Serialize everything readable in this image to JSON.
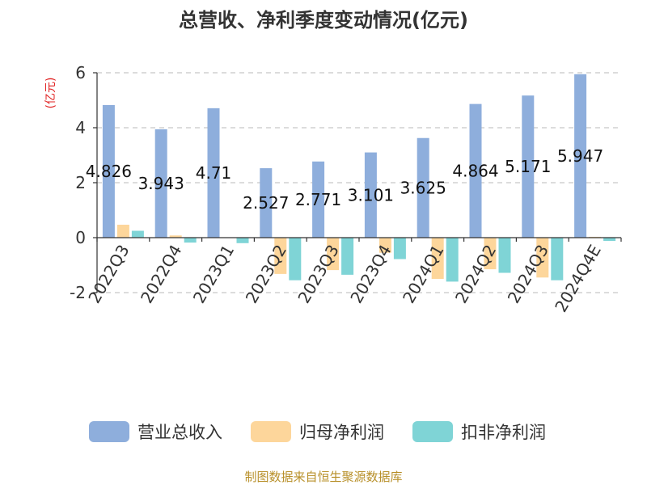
{
  "chart_data": {
    "type": "bar",
    "title": "总营收、净利季度变动情况(亿元)",
    "unit_label": "(亿元)",
    "categories": [
      "2022Q3",
      "2022Q4",
      "2023Q1",
      "2023Q2",
      "2023Q3",
      "2023Q4",
      "2024Q1",
      "2024Q2",
      "2024Q3",
      "2024Q4E"
    ],
    "series": [
      {
        "name": "营业总收入",
        "color": "#8eaedc",
        "values": [
          4.826,
          3.943,
          4.71,
          2.527,
          2.771,
          3.101,
          3.625,
          4.864,
          5.171,
          5.947
        ]
      },
      {
        "name": "归母净利润",
        "color": "#fdd69b",
        "values": [
          0.47,
          0.08,
          0.0,
          -1.32,
          -1.18,
          -0.55,
          -1.5,
          -1.15,
          -1.45,
          0.03
        ]
      },
      {
        "name": "扣非净利润",
        "color": "#7fd4d6",
        "values": [
          0.25,
          -0.18,
          -0.2,
          -1.55,
          -1.35,
          -0.78,
          -1.6,
          -1.28,
          -1.55,
          -0.12
        ]
      }
    ],
    "data_labels": [
      "4.826",
      "3.943",
      "4.71",
      "2.527",
      "2.771",
      "3.101",
      "3.625",
      "4.864",
      "5.171",
      "5.947"
    ],
    "yticks": [
      "-2",
      "0",
      "2",
      "4",
      "6"
    ],
    "ylim": [
      -2,
      6
    ],
    "grid": true,
    "legend_position": "bottom"
  },
  "source": "制图数据来自恒生聚源数据库"
}
